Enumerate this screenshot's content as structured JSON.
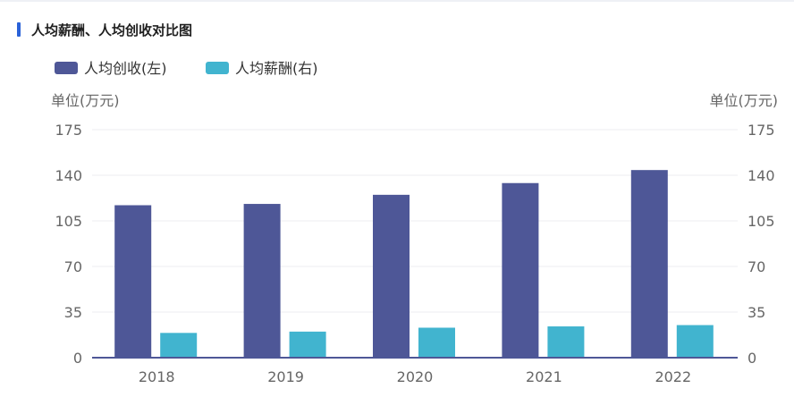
{
  "panel": {
    "title": "人均薪酬、人均创收对比图"
  },
  "chart_data": {
    "type": "bar",
    "title": "人均薪酬、人均创收对比图",
    "categories": [
      "2018",
      "2019",
      "2020",
      "2021",
      "2022"
    ],
    "series": [
      {
        "name": "人均创收(左)",
        "axis": "left",
        "color": "#4e5797",
        "values": [
          117,
          118,
          125,
          134,
          144
        ]
      },
      {
        "name": "人均薪酬(右)",
        "axis": "right",
        "color": "#41b4cf",
        "values": [
          19,
          20,
          23,
          24,
          25
        ]
      }
    ],
    "y_left": {
      "unit_label": "单位(万元)",
      "range": [
        0,
        175
      ],
      "ticks": [
        0,
        35,
        70,
        105,
        140,
        175
      ]
    },
    "y_right": {
      "unit_label": "单位(万元)",
      "range": [
        0,
        175
      ],
      "ticks": [
        0,
        35,
        70,
        105,
        140,
        175
      ]
    },
    "legend_position": "top-left",
    "grid": true
  }
}
